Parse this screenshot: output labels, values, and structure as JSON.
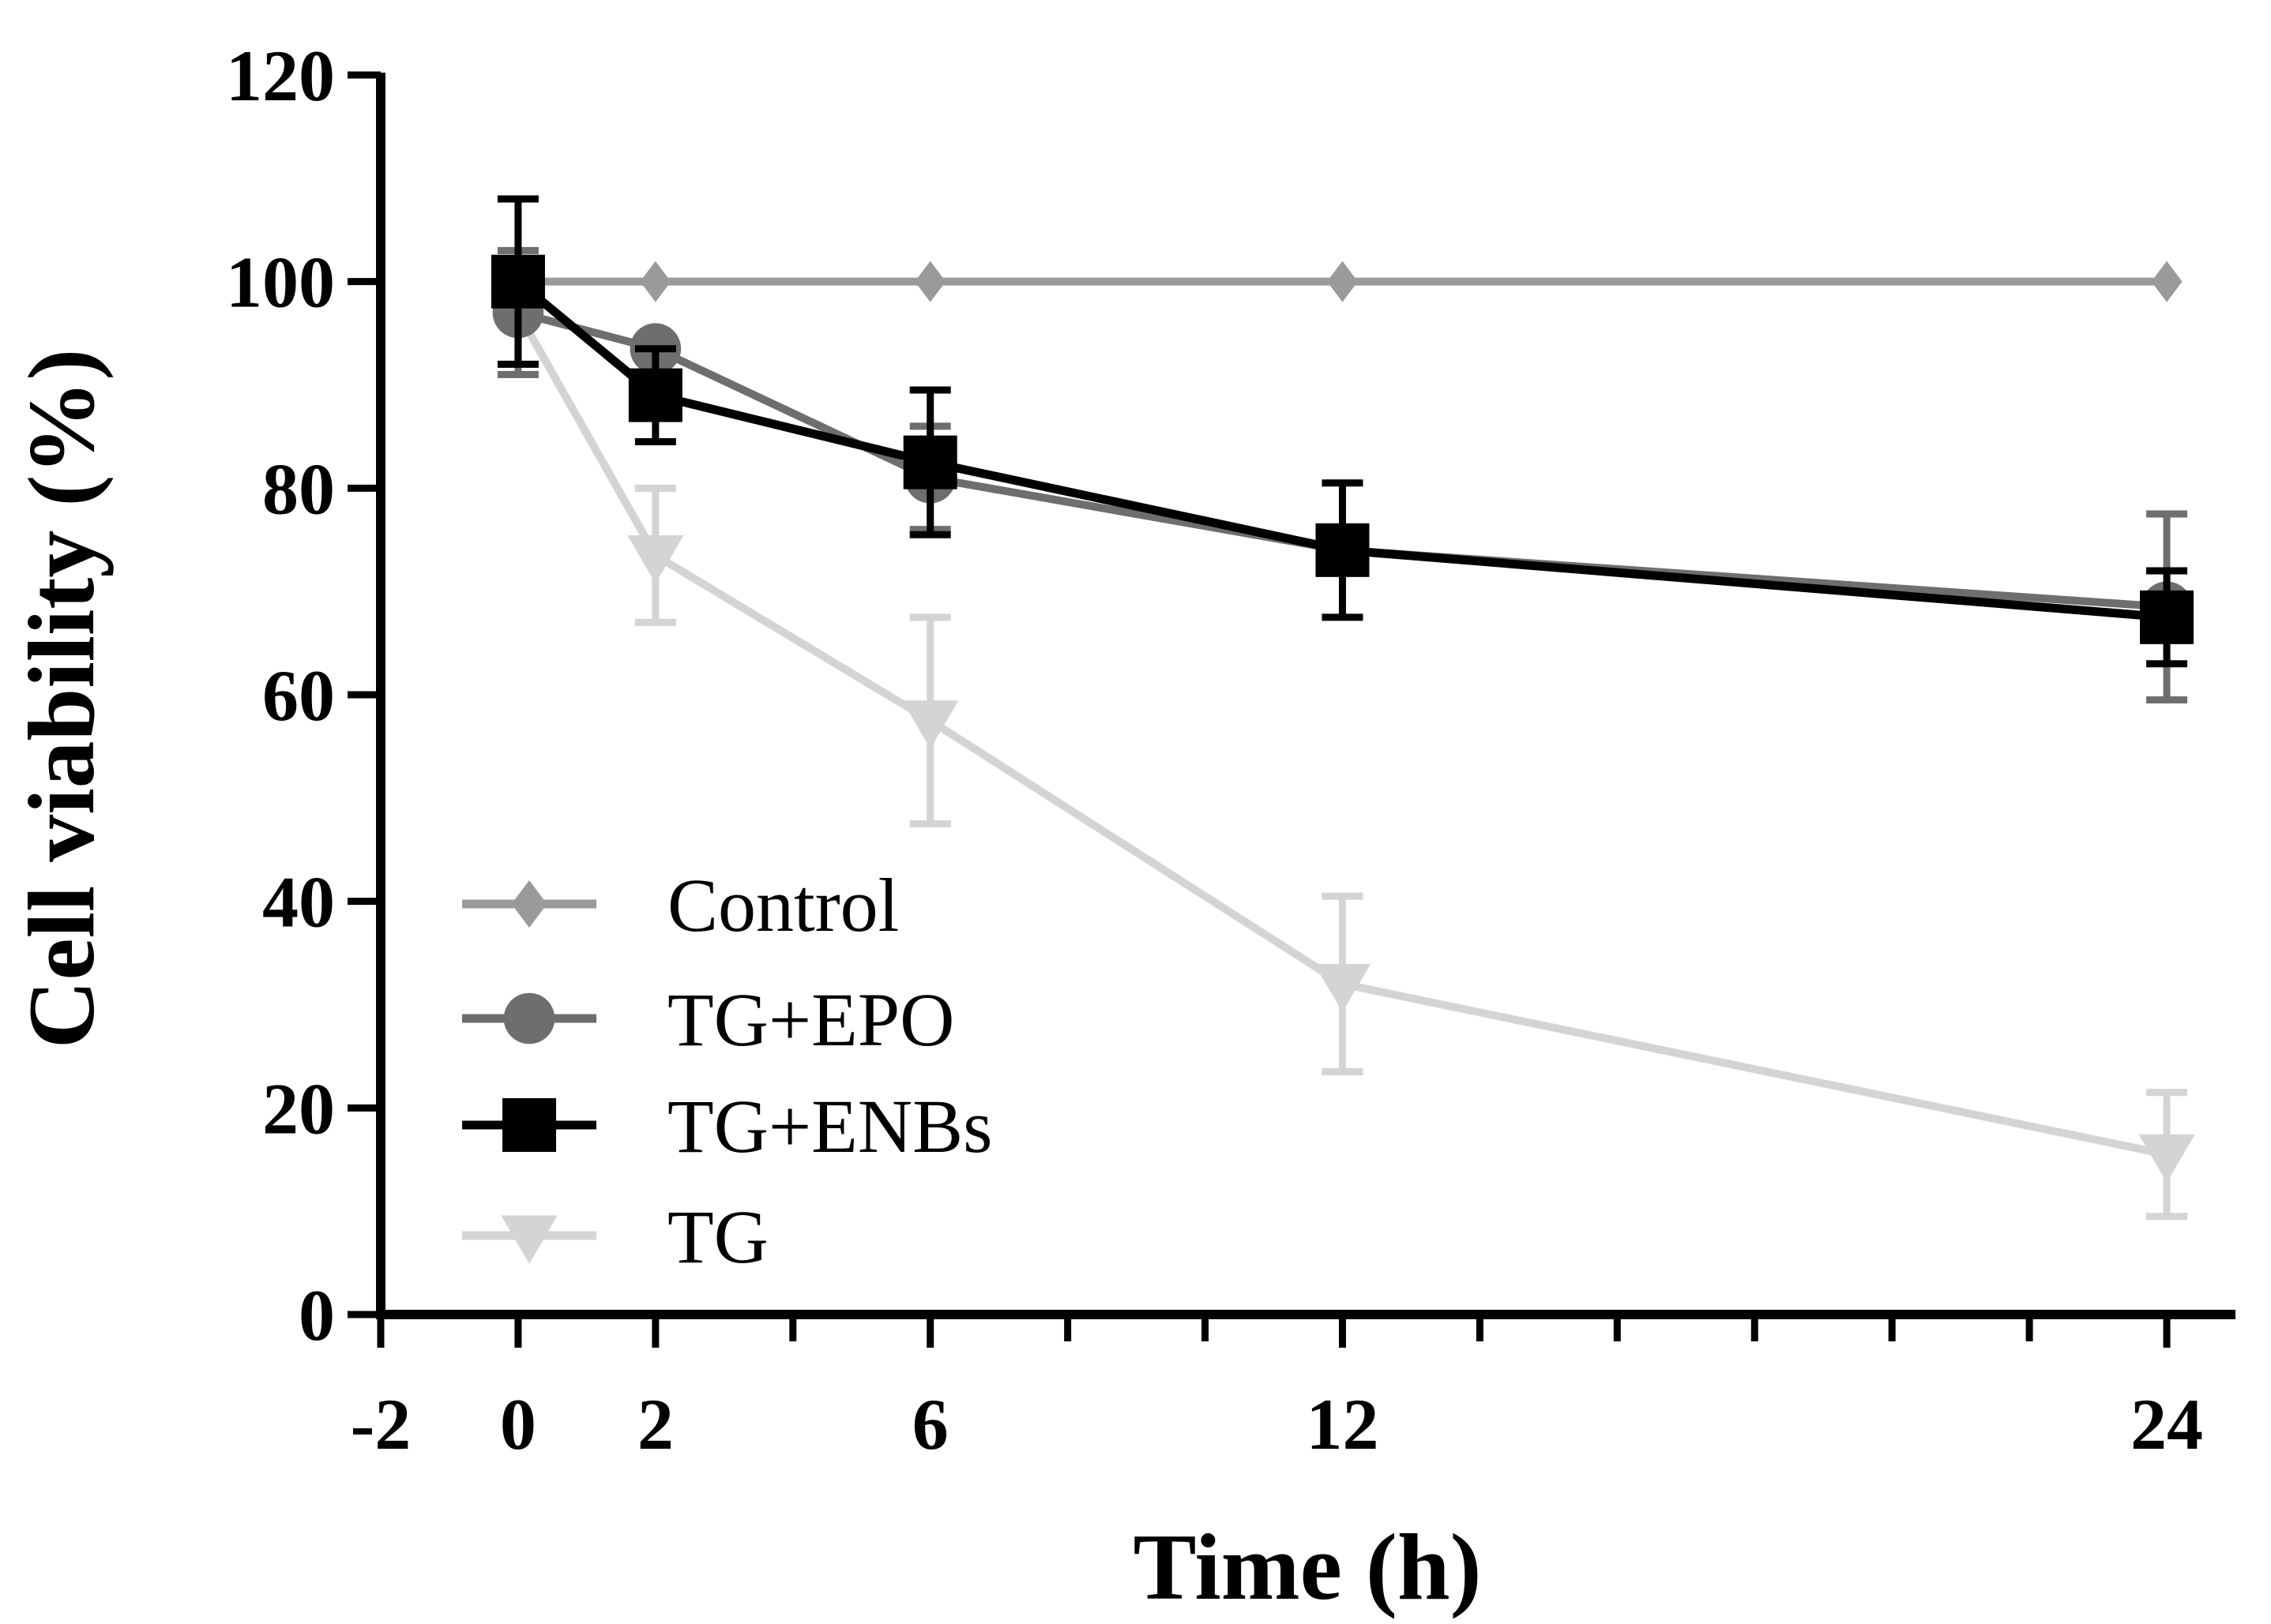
{
  "chart_data": {
    "type": "line",
    "xlabel": "Time (h)",
    "ylabel": "Cell viability (%)",
    "xlim": [
      -2,
      25
    ],
    "ylim": [
      0,
      120
    ],
    "x_ticks": [
      -2,
      0,
      2,
      6,
      12,
      24
    ],
    "x_minor_ticks": [
      4,
      8,
      10,
      14,
      16,
      18,
      20,
      22
    ],
    "y_ticks": [
      0,
      20,
      40,
      60,
      80,
      100,
      120
    ],
    "legend_position": "bottom-left",
    "series": [
      {
        "name": "Control",
        "color": "#9a9a9a",
        "marker": "diamond",
        "x": [
          0,
          2,
          6,
          12,
          24
        ],
        "y": [
          100,
          100,
          100,
          100,
          100
        ],
        "err": [
          0,
          0,
          0,
          0,
          0
        ]
      },
      {
        "name": "TG+EPO",
        "color": "#6e6e6e",
        "marker": "circle",
        "x": [
          0,
          2,
          6,
          12,
          24
        ],
        "y": [
          97,
          93.5,
          81,
          74,
          68.5
        ],
        "err": [
          6,
          0,
          5,
          0,
          9
        ]
      },
      {
        "name": "TG+ENBs",
        "color": "#000000",
        "marker": "square",
        "x": [
          0,
          2,
          6,
          12,
          24
        ],
        "y": [
          100,
          89,
          82.5,
          74,
          67.5
        ],
        "err": [
          8,
          4.5,
          7,
          6.5,
          4.5
        ]
      },
      {
        "name": "TG",
        "color": "#d4d4d4",
        "marker": "triangle-down",
        "x": [
          0,
          2,
          6,
          12,
          24
        ],
        "y": [
          97,
          73.5,
          57.5,
          32,
          15.5
        ],
        "err": [
          6,
          6.5,
          10,
          8.5,
          6
        ]
      }
    ]
  }
}
